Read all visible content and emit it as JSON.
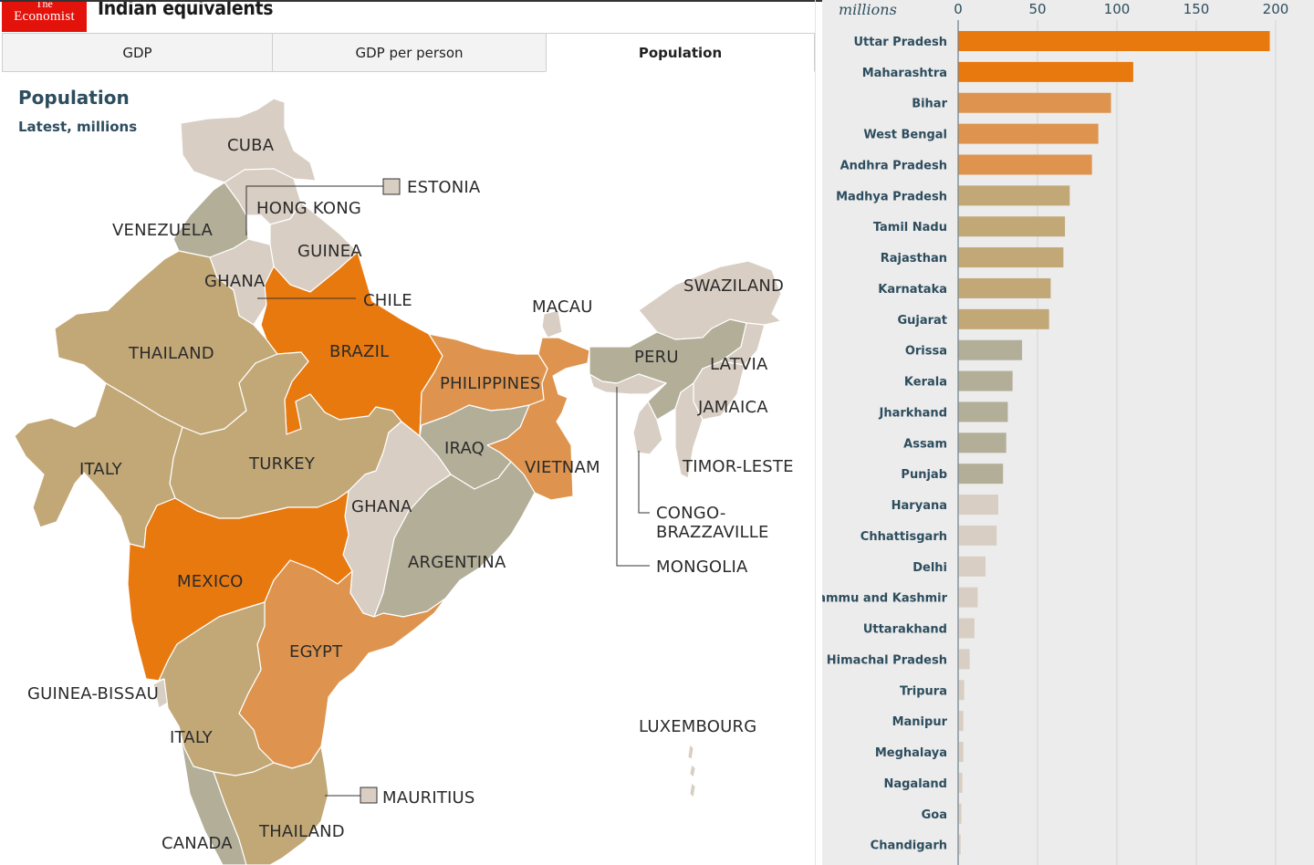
{
  "header": {
    "logo_line1": "The",
    "logo_line2": "Economist",
    "title": "Indian equivalents"
  },
  "tabs": [
    {
      "label": "GDP",
      "active": false
    },
    {
      "label": "GDP per person",
      "active": false
    },
    {
      "label": "Population",
      "active": true
    }
  ],
  "map": {
    "title": "Population",
    "subtitle": "Latest, millions",
    "colors": {
      "darkest": "#e8790f",
      "dark": "#de944e",
      "mid": "#c2a877",
      "light": "#b2ae98",
      "lightest": "#d8cec3"
    },
    "labels": [
      "CUBA",
      "ESTONIA",
      "HONG KONG",
      "VENEZUELA",
      "GUINEA",
      "GHANA",
      "CHILE",
      "MACAU",
      "SWAZILAND",
      "THAILAND",
      "BRAZIL",
      "PERU",
      "LATVIA",
      "PHILIPPINES",
      "JAMAICA",
      "IRAQ",
      "ITALY",
      "TURKEY",
      "VIETNAM",
      "TIMOR-LESTE",
      "GHANA",
      "CONGO-",
      "BRAZZAVILLE",
      "ARGENTINA",
      "MONGOLIA",
      "MEXICO",
      "EGYPT",
      "GUINEA-BISSAU",
      "LUXEMBOURG",
      "ITALY",
      "MAURITIUS",
      "THAILAND",
      "CANADA"
    ]
  },
  "chart_data": {
    "type": "bar",
    "orientation": "horizontal",
    "unit_label": "millions",
    "xlim": [
      0,
      200
    ],
    "xticks": [
      "0",
      "50",
      "100",
      "150",
      "200"
    ],
    "grid": true,
    "categories": [
      "Uttar Pradesh",
      "Maharashtra",
      "Bihar",
      "West Bengal",
      "Andhra Pradesh",
      "Madhya Pradesh",
      "Tamil Nadu",
      "Rajasthan",
      "Karnataka",
      "Gujarat",
      "Orissa",
      "Kerala",
      "Jharkhand",
      "Assam",
      "Punjab",
      "Haryana",
      "Chhattisgarh",
      "Delhi",
      "Jammu and Kashmir",
      "Uttarakhand",
      "Himachal Pradesh",
      "Tripura",
      "Manipur",
      "Meghalaya",
      "Nagaland",
      "Goa",
      "Chandigarh"
    ],
    "values": [
      196,
      110,
      96,
      88,
      84,
      70,
      67,
      66,
      58,
      57,
      40,
      34,
      31,
      30,
      28,
      25,
      24,
      17,
      12,
      10,
      7,
      3.5,
      3,
      3,
      2.4,
      1.8,
      1.3
    ],
    "color_classes": [
      "darkest",
      "darkest",
      "dark",
      "dark",
      "dark",
      "mid",
      "mid",
      "mid",
      "mid",
      "mid",
      "light",
      "light",
      "light",
      "light",
      "light",
      "lightest",
      "lightest",
      "lightest",
      "lightest",
      "lightest",
      "lightest",
      "lightest",
      "lightest",
      "lightest",
      "lightest",
      "lightest",
      "lightest"
    ]
  }
}
